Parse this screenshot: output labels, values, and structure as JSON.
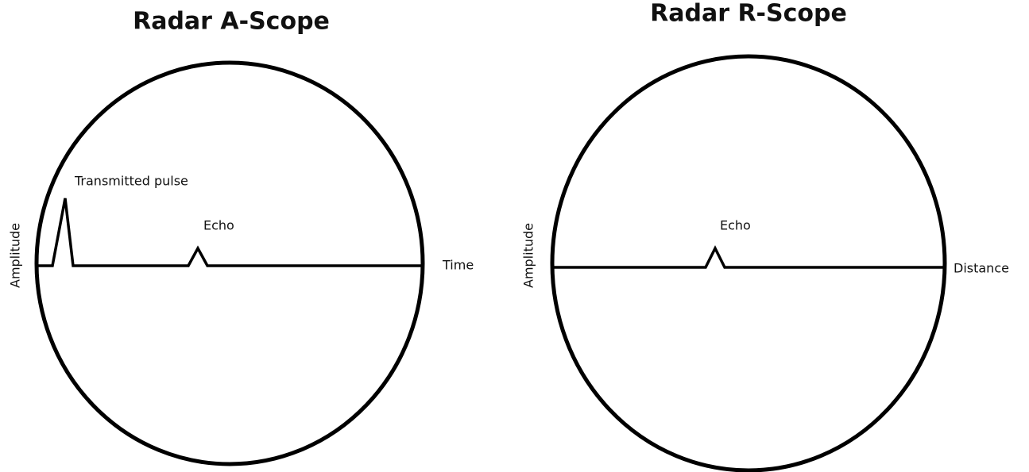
{
  "scopes": [
    {
      "title": "Radar A-Scope",
      "x_label": "Time",
      "y_label": "Amplitude",
      "annotations": [
        "Transmitted  pulse",
        "Echo"
      ]
    },
    {
      "title": "Radar R-Scope",
      "x_label": "Distance",
      "y_label": "Amplitude",
      "annotations": [
        "Echo"
      ]
    }
  ]
}
